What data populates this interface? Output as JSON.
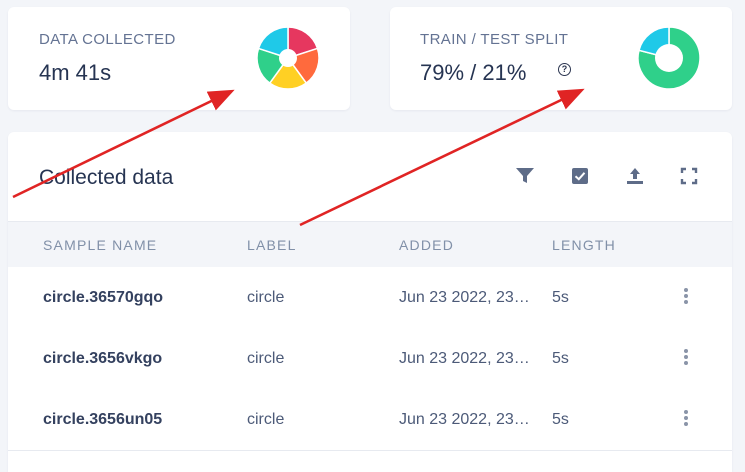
{
  "summary": {
    "data_collected": {
      "label": "DATA COLLECTED",
      "value": "4m 41s"
    },
    "train_test_split": {
      "label": "TRAIN / TEST SPLIT",
      "value": "79% / 21%",
      "train_fraction": 0.79,
      "test_fraction": 0.21
    }
  },
  "table": {
    "title": "Collected data",
    "columns": [
      "SAMPLE NAME",
      "LABEL",
      "ADDED",
      "LENGTH"
    ],
    "rows": [
      {
        "name": "circle.36570gqo",
        "label": "circle",
        "added": "Jun 23 2022, 23…",
        "length": "5s"
      },
      {
        "name": "circle.3656vkgo",
        "label": "circle",
        "added": "Jun 23 2022, 23…",
        "length": "5s"
      },
      {
        "name": "circle.3656un05",
        "label": "circle",
        "added": "Jun 23 2022, 23…",
        "length": "5s"
      }
    ]
  },
  "toolbar_icons": [
    "filter-icon",
    "checkbox-icon",
    "upload-icon",
    "fullscreen-icon"
  ],
  "colors": {
    "donut_data": [
      "#e6375f",
      "#ff6a3d",
      "#ffd024",
      "#2fd08a",
      "#1fc9e8"
    ],
    "donut_train": "#2fd08a",
    "donut_test": "#1fc9e8",
    "annotation_arrow": "#e02424"
  }
}
